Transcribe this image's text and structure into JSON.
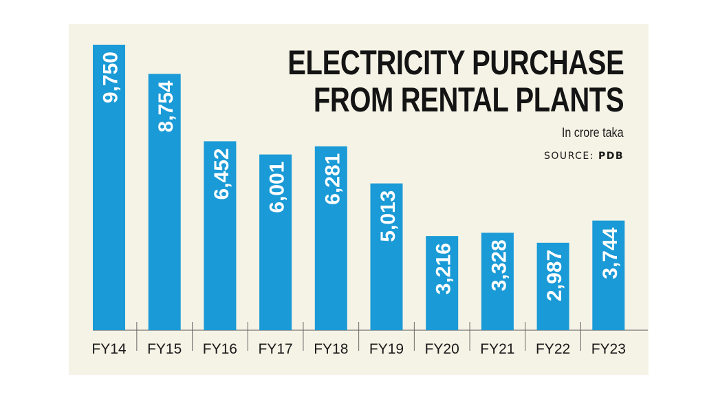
{
  "title_line1": "ELECTRICITY PURCHASE",
  "title_line2": "FROM RENTAL PLANTS",
  "unit": "In crore taka",
  "source_label": "SOURCE: ",
  "source_name": "PDB",
  "colors": {
    "background": "#f5f3e6",
    "bar": "#1a9ad6",
    "label": "#ffffff",
    "text": "#141414"
  },
  "chart_data": {
    "type": "bar",
    "categories": [
      "FY14",
      "FY15",
      "FY16",
      "FY17",
      "FY18",
      "FY19",
      "FY20",
      "FY21",
      "FY22",
      "FY23"
    ],
    "values": [
      9750,
      8754,
      6452,
      6001,
      6281,
      5013,
      3216,
      3328,
      2987,
      3744
    ],
    "value_labels": [
      "9,750",
      "8,754",
      "6,452",
      "6,001",
      "6,281",
      "5,013",
      "3,216",
      "3,328",
      "2,987",
      "3,744"
    ],
    "title": "ELECTRICITY PURCHASE FROM RENTAL PLANTS",
    "ylabel": "In crore taka",
    "ylim": [
      0,
      9750
    ],
    "grid": false,
    "legend": "none"
  }
}
